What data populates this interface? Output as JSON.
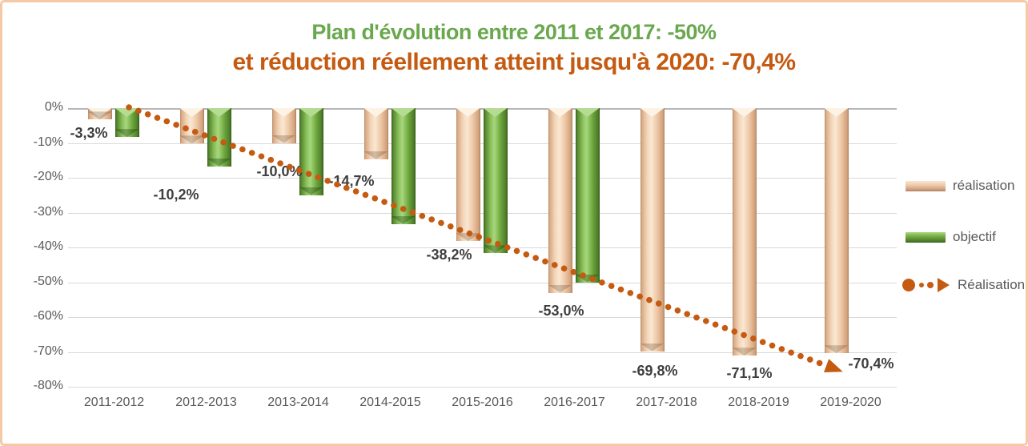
{
  "title": {
    "line1": "Plan d'évolution entre 2011 et 2017: -50%",
    "line1_color": "#6aa84e",
    "line2": "et réduction réellement atteint jusqu'à 2020: -70,4%",
    "line2_color": "#c55a11"
  },
  "chart_data": {
    "type": "bar",
    "categories": [
      "2011-2012",
      "2012-2013",
      "2013-2014",
      "2014-2015",
      "2015-2016",
      "2016-2017",
      "2017-2018",
      "2018-2019",
      "2019-2020"
    ],
    "series": [
      {
        "name": "réalisation",
        "type": "bar",
        "color": "#eec5a5",
        "values": [
          -3.3,
          -10.2,
          -10.0,
          -14.7,
          -38.2,
          -53.0,
          -69.8,
          -71.1,
          -70.4
        ],
        "labels": [
          "-3,3%",
          "-10,2%",
          "-10,0%",
          "-14,7%",
          "-38,2%",
          "-53,0%",
          "-69,8%",
          "-71,1%",
          "-70,4%"
        ]
      },
      {
        "name": "objectif",
        "type": "bar",
        "color": "#6fa83f",
        "values": [
          -8.3,
          -16.7,
          -25.0,
          -33.3,
          -41.7,
          -50.0,
          null,
          null,
          null
        ]
      },
      {
        "name": "Réalisation",
        "type": "trendline",
        "style": "dotted-arrow",
        "color": "#c55a11",
        "endpoints_pct": {
          "start": 0,
          "end": -78
        }
      }
    ],
    "ylim": [
      -80,
      0
    ],
    "yticks": [
      "0%",
      "-10%",
      "-20%",
      "-30%",
      "-40%",
      "-50%",
      "-60%",
      "-70%",
      "-80%"
    ],
    "grid": true,
    "legend_position": "right",
    "axis_text_color": "#595959",
    "gridline_color": "#d9d9d9",
    "data_label_color": "#3f3f3f"
  },
  "legend": {
    "items": [
      {
        "label": "réalisation",
        "swatch": "bar-tan"
      },
      {
        "label": "objectif",
        "swatch": "bar-green"
      },
      {
        "label": "Réalisation",
        "swatch": "dotted-arrow"
      }
    ]
  },
  "frame": {
    "border_color": "#f5c9a3",
    "background": "#ffffff"
  }
}
